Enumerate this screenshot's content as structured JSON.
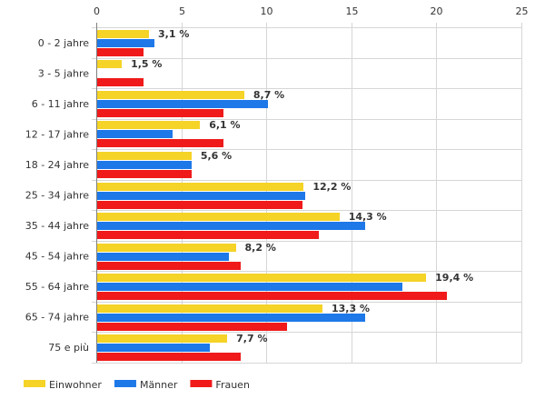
{
  "chart_data": {
    "type": "bar",
    "orientation": "horizontal",
    "categories": [
      "0 - 2 jahre",
      "3 - 5 jahre",
      "6 - 11 jahre",
      "12 - 17 jahre",
      "18 - 24 jahre",
      "25 - 34 jahre",
      "35 - 44 jahre",
      "45 - 54 jahre",
      "55 - 64 jahre",
      "65 - 74 jahre",
      "75 e più"
    ],
    "series": [
      {
        "name": "Einwohner",
        "color": "#f5d327",
        "values": [
          3.1,
          1.5,
          8.7,
          6.1,
          5.6,
          12.2,
          14.3,
          8.2,
          19.4,
          13.3,
          7.7
        ],
        "labels": [
          "3,1 %",
          "1,5 %",
          "8,7 %",
          "6,1 %",
          "5,6 %",
          "12,2 %",
          "14,3 %",
          "8,2 %",
          "19,4 %",
          "13,3 %",
          "7,7 %"
        ]
      },
      {
        "name": "Männer",
        "color": "#1e78e8",
        "values": [
          3.4,
          0,
          10.1,
          4.5,
          5.6,
          12.3,
          15.8,
          7.8,
          18.0,
          15.8,
          6.7
        ]
      },
      {
        "name": "Frauen",
        "color": "#f01a1a",
        "values": [
          2.8,
          2.8,
          7.5,
          7.5,
          5.6,
          12.1,
          13.1,
          8.5,
          20.6,
          11.2,
          8.5
        ]
      }
    ],
    "x_ticks": [
      "0",
      "5",
      "10",
      "15",
      "20",
      "25"
    ],
    "xlim": [
      0,
      25
    ],
    "grid": true,
    "legend_position": "bottom-left"
  }
}
